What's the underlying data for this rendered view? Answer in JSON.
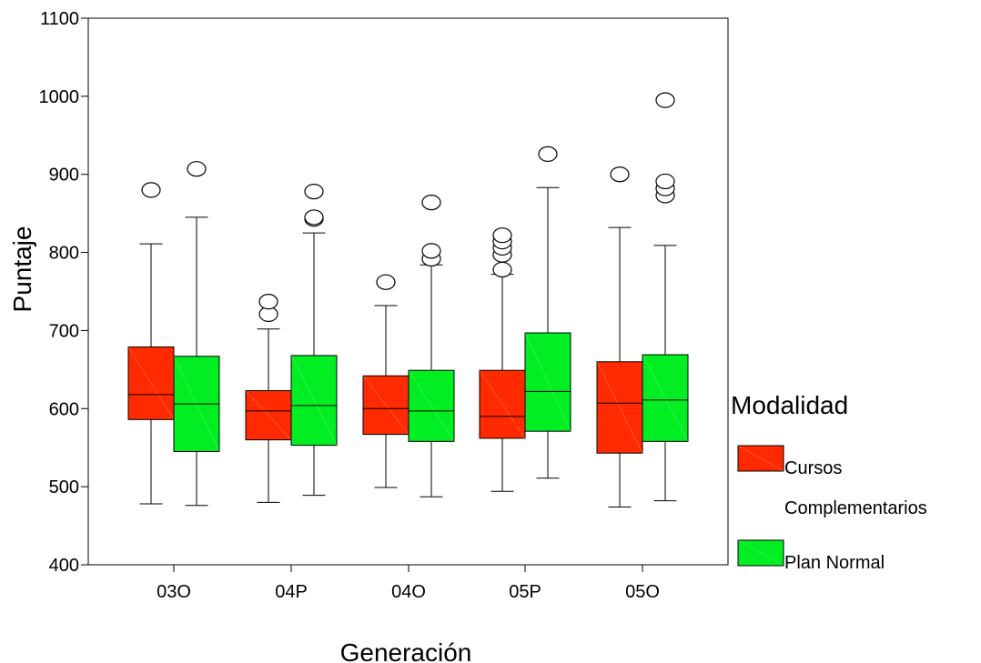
{
  "chart_data": {
    "type": "boxplot",
    "title": "",
    "xlabel": "Generación",
    "ylabel": "Puntaje",
    "ylim": [
      400,
      1100
    ],
    "yticks": [
      400,
      500,
      600,
      700,
      800,
      900,
      1000,
      1100
    ],
    "categories": [
      "03O",
      "04P",
      "04O",
      "05P",
      "05O"
    ],
    "grid": false,
    "legend": {
      "title": "Modalidad",
      "placement": "right"
    },
    "series": [
      {
        "name": "Cursos Complementarios",
        "legend_lines": [
          "Cursos",
          "Complementarios"
        ],
        "color": "#ff2a00",
        "boxes": [
          {
            "whisker_low": 478,
            "q1": 586,
            "median": 618,
            "q3": 679,
            "whisker_high": 811,
            "outliers": [
              880
            ]
          },
          {
            "whisker_low": 480,
            "q1": 560,
            "median": 597,
            "q3": 623,
            "whisker_high": 702,
            "outliers": [
              721,
              737
            ]
          },
          {
            "whisker_low": 499,
            "q1": 567,
            "median": 600,
            "q3": 642,
            "whisker_high": 732,
            "outliers": [
              762
            ]
          },
          {
            "whisker_low": 494,
            "q1": 562,
            "median": 590,
            "q3": 649,
            "whisker_high": 772,
            "outliers": [
              778,
              797,
              806,
              814,
              822
            ]
          },
          {
            "whisker_low": 474,
            "q1": 543,
            "median": 607,
            "q3": 660,
            "whisker_high": 832,
            "outliers": [
              900
            ]
          }
        ]
      },
      {
        "name": "Plan Normal",
        "legend_lines": [
          "Plan Normal"
        ],
        "color": "#00ee22",
        "boxes": [
          {
            "whisker_low": 476,
            "q1": 545,
            "median": 606,
            "q3": 667,
            "whisker_high": 845,
            "outliers": [
              907
            ]
          },
          {
            "whisker_low": 489,
            "q1": 553,
            "median": 604,
            "q3": 668,
            "whisker_high": 825,
            "outliers": [
              843,
              845,
              878
            ]
          },
          {
            "whisker_low": 487,
            "q1": 558,
            "median": 597,
            "q3": 649,
            "whisker_high": 784,
            "outliers": [
              792,
              802,
              864
            ]
          },
          {
            "whisker_low": 511,
            "q1": 571,
            "median": 622,
            "q3": 697,
            "whisker_high": 883,
            "outliers": [
              926
            ]
          },
          {
            "whisker_low": 482,
            "q1": 558,
            "median": 611,
            "q3": 669,
            "whisker_high": 809,
            "outliers": [
              873,
              882,
              891,
              995
            ]
          }
        ]
      }
    ]
  }
}
